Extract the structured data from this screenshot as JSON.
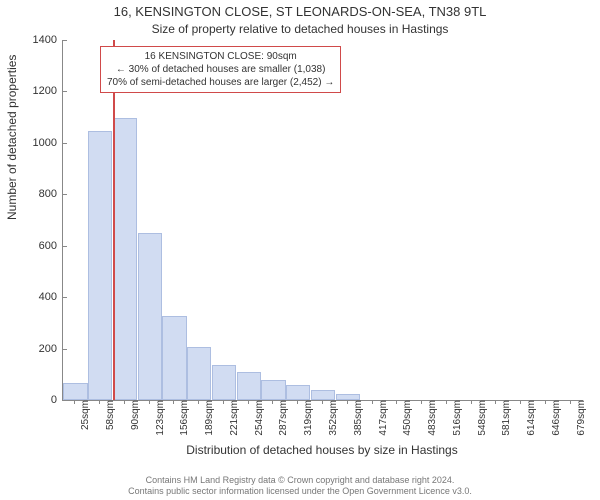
{
  "title_main": "16, KENSINGTON CLOSE, ST LEONARDS-ON-SEA, TN38 9TL",
  "title_sub": "Size of property relative to detached houses in Hastings",
  "ylabel": "Number of detached properties",
  "xlabel": "Distribution of detached houses by size in Hastings",
  "footer_line1": "Contains HM Land Registry data © Crown copyright and database right 2024.",
  "footer_line2": "Contains public sector information licensed under the Open Government Licence v3.0.",
  "chart": {
    "type": "histogram",
    "background_color": "#ffffff",
    "axis_color": "#888888",
    "bar_fill": "#c9d7f0",
    "bar_stroke": "#9fb3dc",
    "bar_opacity": 0.85,
    "refline_color": "#d04a4a",
    "annotation_border": "#d04a4a",
    "ylim": [
      0,
      1400
    ],
    "ytick_step": 200,
    "xticks": [
      "25sqm",
      "58sqm",
      "90sqm",
      "123sqm",
      "156sqm",
      "189sqm",
      "221sqm",
      "254sqm",
      "287sqm",
      "319sqm",
      "352sqm",
      "385sqm",
      "417sqm",
      "450sqm",
      "483sqm",
      "516sqm",
      "548sqm",
      "581sqm",
      "614sqm",
      "646sqm",
      "679sqm"
    ],
    "values": [
      60,
      1040,
      1090,
      640,
      320,
      200,
      130,
      100,
      70,
      50,
      30,
      15,
      0,
      0,
      0,
      0,
      0,
      0,
      0,
      0,
      0
    ],
    "ref_value_sqm": 90,
    "ref_index": 2
  },
  "annotation": {
    "line1": "16 KENSINGTON CLOSE: 90sqm",
    "line2": "← 30% of detached houses are smaller (1,038)",
    "line3": "70% of semi-detached houses are larger (2,452) →"
  }
}
